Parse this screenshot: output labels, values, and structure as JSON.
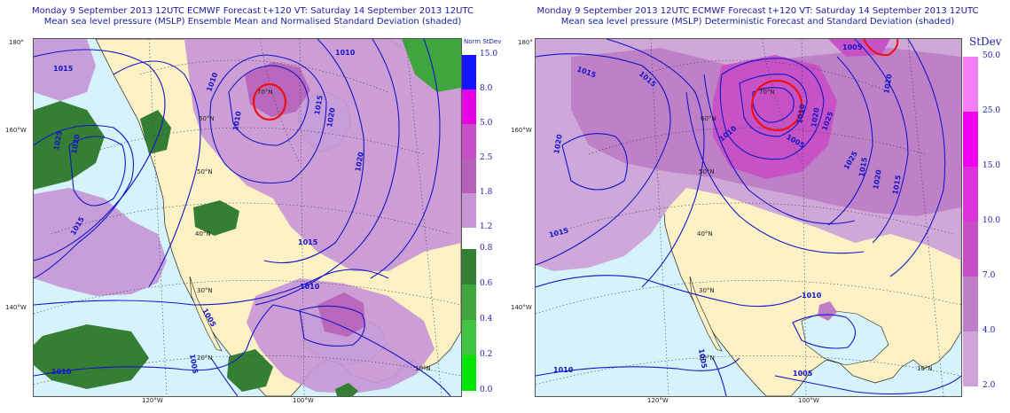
{
  "left_panel": {
    "title_line1": "Monday 9 September 2013 12UTC ECMWF Forecast t+120  VT: Saturday 14 September 2013 12UTC",
    "title_line2": "Mean sea level pressure (MSLP) Ensemble Mean and Normalised Standard Deviation (shaded)",
    "legend_title": "Norm StDev",
    "legend_high": [
      {
        "label": "15.0",
        "color": "#1414ff"
      },
      {
        "label": "8.0",
        "color": "#e600e6"
      },
      {
        "label": "5.0",
        "color": "#c84ec8"
      },
      {
        "label": "2.5",
        "color": "#b760b9"
      },
      {
        "label": "1.8",
        "color": "#c795d6"
      }
    ],
    "legend_high_bottom_label": "1.2",
    "legend_low": [
      {
        "label": "0.8",
        "color": "#347f34"
      },
      {
        "label": "0.6",
        "color": "#3fa53f"
      },
      {
        "label": "0.4",
        "color": "#42c342"
      },
      {
        "label": "0.2",
        "color": "#00e600"
      }
    ],
    "legend_low_bottom_label": "0.0",
    "lat_labels": [
      "180°",
      "160°W",
      "140°W"
    ],
    "lon_labels": [
      "120°W",
      "100°W"
    ],
    "inner_labels": [
      "70°N",
      "60°N",
      "50°N",
      "40°N",
      "30°N",
      "20°N",
      "10°N"
    ],
    "isobar_labels": [
      "1015",
      "1010",
      "1010",
      "1015",
      "1020",
      "1025",
      "1020",
      "1010",
      "1020",
      "1015",
      "1015",
      "1010",
      "1005",
      "1010",
      "1005"
    ]
  },
  "right_panel": {
    "title_line1": "Monday 9 September 2013 12UTC ECMWF Forecast t+120  VT: Saturday 14 September 2013 12UTC",
    "title_line2": "Mean sea level pressure (MSLP) Deterministic Forecast and Standard Deviation (shaded)",
    "legend_title": "StDev",
    "legend": [
      {
        "label": "50.0",
        "color": "#f57ff5"
      },
      {
        "label": "25.0",
        "color": "#f000f0"
      },
      {
        "label": "15.0",
        "color": "#dc32dc"
      },
      {
        "label": "10.0",
        "color": "#c64fc6"
      },
      {
        "label": "7.0",
        "color": "#bd7ec6"
      },
      {
        "label": "4.0",
        "color": "#cea3d9"
      }
    ],
    "legend_bottom_label": "2.0",
    "lat_labels": [
      "180°",
      "160°W",
      "140°W"
    ],
    "lon_labels": [
      "120°W",
      "100°W"
    ],
    "inner_labels": [
      "70°N",
      "60°N",
      "50°N",
      "40°N",
      "30°N",
      "20°N",
      "10°N"
    ],
    "isobar_labels": [
      "1015",
      "1015",
      "1005",
      "1010",
      "1020",
      "1025",
      "1020",
      "1010",
      "1005",
      "1015",
      "1025",
      "1020",
      "1015",
      "1020",
      "1015",
      "1010",
      "1010",
      "1005",
      "1005"
    ]
  },
  "colors": {
    "ocean": "#d6f3fb",
    "land": "#fbf1c5",
    "isobar": "#1414c8",
    "low_center": "#ee1111",
    "coast": "#222222"
  }
}
